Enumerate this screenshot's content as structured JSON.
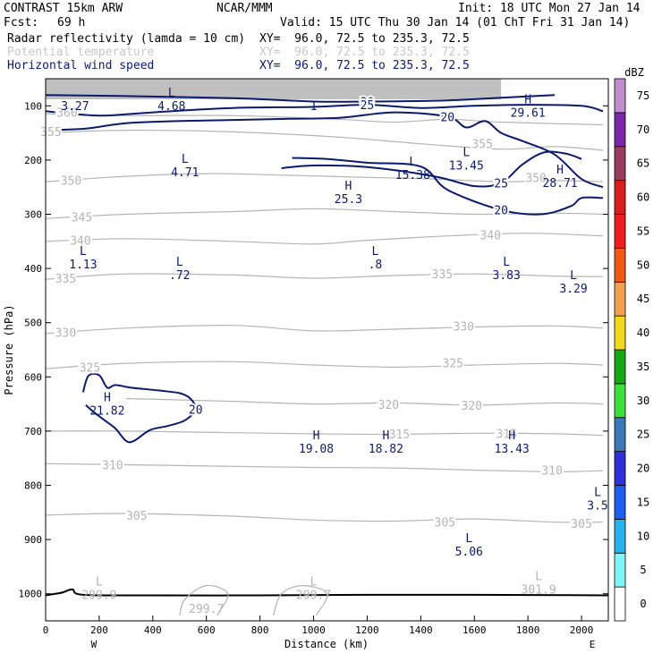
{
  "header": {
    "model": "CONTRAST 15km ARW",
    "org": "NCAR/MMM",
    "init": "Init: 18 UTC Mon 27 Jan 14",
    "fcst_label": "Fcst:",
    "fcst_value": "69 h",
    "valid": "Valid: 15 UTC Thu 30 Jan 14 (01 ChT Fri 31 Jan 14)",
    "fields": [
      {
        "name": "Radar reflectivity (lamda = 10 cm)",
        "xy": "XY=  96.0, 72.5 to 235.3, 72.5"
      },
      {
        "name": "Potential temperature",
        "xy": "XY=  96.0, 72.5 to 235.3, 72.5"
      },
      {
        "name": "Horizontal wind speed",
        "xy": "XY=  96.0, 72.5 to 235.3, 72.5"
      }
    ]
  },
  "chart_data": {
    "type": "cross-section contour",
    "xlabel": "Distance (km)",
    "ylabel": "Pressure (hPa)",
    "xlim": [
      0,
      2100
    ],
    "ylim": [
      1050,
      50
    ],
    "x_ticks": [
      0,
      200,
      400,
      600,
      800,
      1000,
      1200,
      1400,
      1600,
      1800,
      2000
    ],
    "y_ticks": [
      100,
      200,
      300,
      400,
      500,
      600,
      700,
      800,
      900,
      1000
    ],
    "x_end_labels": {
      "left": "W",
      "right": "E"
    },
    "colorbar": {
      "title": "dBZ",
      "levels": [
        0,
        5,
        10,
        15,
        20,
        25,
        30,
        35,
        40,
        45,
        50,
        55,
        60,
        65,
        70,
        75
      ],
      "colors": [
        "#ffffff",
        "#7ff5f5",
        "#29b2ee",
        "#1e5cf0",
        "#3030d8",
        "#3c78b8",
        "#3ce03c",
        "#14a814",
        "#f0d81e",
        "#f0a050",
        "#f05a14",
        "#f01e1e",
        "#d81e1e",
        "#9a3c60",
        "#7a28a8",
        "#c08ccc"
      ]
    },
    "wind_speed_contours": [
      {
        "value": 30,
        "points": [
          [
            0,
            80
          ],
          [
            300,
            82
          ],
          [
            700,
            86
          ],
          [
            1000,
            92
          ],
          [
            1200,
            92
          ],
          [
            1500,
            90
          ],
          [
            1700,
            85
          ],
          [
            1900,
            80
          ]
        ]
      },
      {
        "value": 25,
        "points": [
          [
            0,
            110
          ],
          [
            200,
            118
          ],
          [
            400,
            112
          ],
          [
            700,
            104
          ],
          [
            1000,
            102
          ],
          [
            1200,
            98
          ],
          [
            1400,
            104
          ],
          [
            1600,
            100
          ],
          [
            1800,
            98
          ],
          [
            2000,
            100
          ],
          [
            2080,
            110
          ]
        ]
      },
      {
        "value": 25,
        "points": [
          [
            880,
            215
          ],
          [
            1000,
            210
          ],
          [
            1200,
            213
          ],
          [
            1450,
            230
          ],
          [
            1600,
            248
          ],
          [
            1700,
            242
          ],
          [
            1780,
            208
          ],
          [
            1860,
            186
          ],
          [
            1940,
            188
          ],
          [
            2000,
            198
          ]
        ]
      },
      {
        "value": 20,
        "points": [
          [
            0,
            145
          ],
          [
            150,
            142
          ],
          [
            300,
            132
          ],
          [
            500,
            128
          ],
          [
            700,
            126
          ],
          [
            900,
            124
          ],
          [
            1100,
            122
          ],
          [
            1300,
            112
          ],
          [
            1500,
            120
          ],
          [
            1570,
            140
          ],
          [
            1640,
            128
          ],
          [
            1700,
            150
          ],
          [
            1780,
            165
          ],
          [
            1900,
            190
          ],
          [
            2000,
            235
          ],
          [
            2080,
            250
          ]
        ]
      },
      {
        "value": 20,
        "points": [
          [
            920,
            196
          ],
          [
            1050,
            198
          ],
          [
            1200,
            205
          ],
          [
            1400,
            212
          ],
          [
            1500,
            255
          ],
          [
            1700,
            292
          ],
          [
            1850,
            300
          ],
          [
            1960,
            285
          ],
          [
            2000,
            270
          ],
          [
            2080,
            270
          ]
        ]
      },
      {
        "value": 20,
        "points": [
          [
            140,
            628
          ],
          [
            160,
            598
          ],
          [
            200,
            597
          ],
          [
            230,
            620
          ],
          [
            260,
            615
          ],
          [
            320,
            620
          ],
          [
            420,
            625
          ],
          [
            500,
            630
          ],
          [
            540,
            640
          ],
          [
            560,
            660
          ],
          [
            520,
            680
          ],
          [
            460,
            690
          ],
          [
            390,
            698
          ],
          [
            330,
            718
          ],
          [
            300,
            718
          ],
          [
            260,
            695
          ],
          [
            220,
            680
          ],
          [
            180,
            665
          ],
          [
            150,
            652
          ]
        ]
      }
    ],
    "wind_speed_values": [
      {
        "value": 3.27,
        "kind": "",
        "x": 110,
        "p": 83
      },
      {
        "value": 4.68,
        "kind": "L",
        "x": 470,
        "p": 83
      },
      {
        "value": 1.0,
        "kind": "",
        "x": 1000,
        "p": 83
      },
      {
        "value": 29.61,
        "kind": "H",
        "x": 1800,
        "p": 95
      },
      {
        "value": 4.71,
        "kind": "L",
        "x": 520,
        "p": 205
      },
      {
        "value": 15.38,
        "kind": "L",
        "x": 1370,
        "p": 210
      },
      {
        "value": 13.45,
        "kind": "L",
        "x": 1570,
        "p": 193
      },
      {
        "value": 28.71,
        "kind": "H",
        "x": 1920,
        "p": 225
      },
      {
        "value": 25.3,
        "kind": "H",
        "x": 1130,
        "p": 255
      },
      {
        "value": 1.13,
        "kind": "L",
        "x": 140,
        "p": 375
      },
      {
        "value": 0.72,
        "kind": "L",
        "x": 500,
        "p": 395
      },
      {
        "value": 0.8,
        "kind": "L",
        "x": 1230,
        "p": 375
      },
      {
        "value": 3.83,
        "kind": "L",
        "x": 1720,
        "p": 395
      },
      {
        "value": 3.29,
        "kind": "L",
        "x": 1970,
        "p": 420
      },
      {
        "value": 21.82,
        "kind": "H",
        "x": 230,
        "p": 645
      },
      {
        "value": 19.08,
        "kind": "H",
        "x": 1010,
        "p": 715
      },
      {
        "value": 18.82,
        "kind": "H",
        "x": 1270,
        "p": 715
      },
      {
        "value": 13.43,
        "kind": "H",
        "x": 1740,
        "p": 715
      },
      {
        "value": 3.5,
        "kind": "L",
        "x": 2060,
        "p": 820
      },
      {
        "value": 5.06,
        "kind": "L",
        "x": 1580,
        "p": 905
      }
    ],
    "theta_contours": [
      {
        "value": 360,
        "points": [
          [
            0,
            115
          ],
          [
            300,
            118
          ],
          [
            700,
            118
          ],
          [
            1100,
            125
          ],
          [
            1300,
            130
          ],
          [
            1500,
            125
          ],
          [
            1700,
            130
          ],
          [
            2080,
            135
          ]
        ]
      },
      {
        "value": 355,
        "points": [
          [
            0,
            150
          ],
          [
            300,
            145
          ],
          [
            700,
            148
          ],
          [
            1100,
            158
          ],
          [
            1400,
            170
          ],
          [
            1700,
            180
          ],
          [
            1900,
            175
          ],
          [
            2080,
            182
          ]
        ]
      },
      {
        "value": 350,
        "points": [
          [
            0,
            240
          ],
          [
            300,
            230
          ],
          [
            600,
            225
          ],
          [
            900,
            228
          ],
          [
            1200,
            232
          ],
          [
            1450,
            235
          ],
          [
            1700,
            240
          ],
          [
            1900,
            238
          ],
          [
            2080,
            240
          ]
        ]
      },
      {
        "value": 345,
        "points": [
          [
            0,
            308
          ],
          [
            300,
            300
          ],
          [
            700,
            295
          ],
          [
            1000,
            290
          ],
          [
            1300,
            295
          ],
          [
            1600,
            300
          ],
          [
            1900,
            298
          ],
          [
            2080,
            300
          ]
        ]
      },
      {
        "value": 340,
        "points": [
          [
            0,
            350
          ],
          [
            300,
            345
          ],
          [
            700,
            350
          ],
          [
            1000,
            355
          ],
          [
            1200,
            348
          ],
          [
            1500,
            340
          ],
          [
            1800,
            335
          ],
          [
            2080,
            340
          ]
        ]
      },
      {
        "value": 335,
        "points": [
          [
            0,
            420
          ],
          [
            300,
            410
          ],
          [
            700,
            412
          ],
          [
            1000,
            418
          ],
          [
            1300,
            413
          ],
          [
            1600,
            410
          ],
          [
            1900,
            414
          ],
          [
            2080,
            415
          ]
        ]
      },
      {
        "value": 330,
        "points": [
          [
            0,
            520
          ],
          [
            300,
            510
          ],
          [
            700,
            505
          ],
          [
            1000,
            515
          ],
          [
            1300,
            512
          ],
          [
            1600,
            508
          ],
          [
            1900,
            506
          ],
          [
            2080,
            510
          ]
        ]
      },
      {
        "value": 325,
        "points": [
          [
            0,
            585
          ],
          [
            300,
            575
          ],
          [
            700,
            572
          ],
          [
            1000,
            578
          ],
          [
            1300,
            582
          ],
          [
            1600,
            578
          ],
          [
            1900,
            575
          ],
          [
            2080,
            578
          ]
        ]
      },
      {
        "value": 320,
        "points": [
          [
            300,
            640
          ],
          [
            700,
            645
          ],
          [
            1000,
            650
          ],
          [
            1300,
            648
          ],
          [
            1600,
            652
          ],
          [
            1900,
            648
          ],
          [
            2080,
            650
          ]
        ]
      },
      {
        "value": 315,
        "points": [
          [
            0,
            700
          ],
          [
            300,
            700
          ],
          [
            700,
            703
          ],
          [
            1000,
            705
          ],
          [
            1300,
            706
          ],
          [
            1600,
            704
          ],
          [
            1900,
            705
          ],
          [
            2080,
            708
          ]
        ]
      },
      {
        "value": 310,
        "points": [
          [
            0,
            760
          ],
          [
            300,
            762
          ],
          [
            700,
            765
          ],
          [
            1000,
            767
          ],
          [
            1300,
            768
          ],
          [
            1600,
            772
          ],
          [
            1900,
            775
          ],
          [
            2080,
            773
          ]
        ]
      },
      {
        "value": 305,
        "points": [
          [
            0,
            855
          ],
          [
            300,
            852
          ],
          [
            700,
            857
          ],
          [
            1000,
            864
          ],
          [
            1300,
            866
          ],
          [
            1600,
            862
          ],
          [
            1900,
            868
          ],
          [
            2080,
            868
          ]
        ]
      }
    ],
    "theta_labels": [
      {
        "text": "360",
        "x": 80,
        "p": 112
      },
      {
        "text": "355",
        "x": 20,
        "p": 147
      },
      {
        "text": "350",
        "x": 95,
        "p": 237
      },
      {
        "text": "345",
        "x": 135,
        "p": 305
      },
      {
        "text": "340",
        "x": 130,
        "p": 348
      },
      {
        "text": "335",
        "x": 75,
        "p": 418
      },
      {
        "text": "330",
        "x": 75,
        "p": 518
      },
      {
        "text": "325",
        "x": 165,
        "p": 582
      },
      {
        "text": "320",
        "x": 1590,
        "p": 652
      },
      {
        "text": "315",
        "x": 1720,
        "p": 704
      },
      {
        "text": "310",
        "x": 250,
        "p": 762
      },
      {
        "text": "305",
        "x": 340,
        "p": 855
      },
      {
        "text": "340",
        "x": 1660,
        "p": 338
      },
      {
        "text": "335",
        "x": 1480,
        "p": 410
      },
      {
        "text": "330",
        "x": 1560,
        "p": 506
      },
      {
        "text": "325",
        "x": 1520,
        "p": 574
      },
      {
        "text": "320",
        "x": 1280,
        "p": 651
      },
      {
        "text": "315",
        "x": 1320,
        "p": 705
      },
      {
        "text": "310",
        "x": 1890,
        "p": 772
      },
      {
        "text": "305",
        "x": 1490,
        "p": 868
      },
      {
        "text": "305",
        "x": 2000,
        "p": 870
      },
      {
        "text": "355",
        "x": 1630,
        "p": 170
      },
      {
        "text": "350",
        "x": 1830,
        "p": 232
      }
    ],
    "theta_values": [
      {
        "value": 299.9,
        "kind": "L",
        "x": 200,
        "p": 985
      },
      {
        "value": 299.7,
        "kind": "",
        "x": 600,
        "p": 1010
      },
      {
        "value": 299.7,
        "kind": "L",
        "x": 1000,
        "p": 985
      },
      {
        "value": 301.9,
        "kind": "L",
        "x": 1840,
        "p": 975
      }
    ]
  }
}
